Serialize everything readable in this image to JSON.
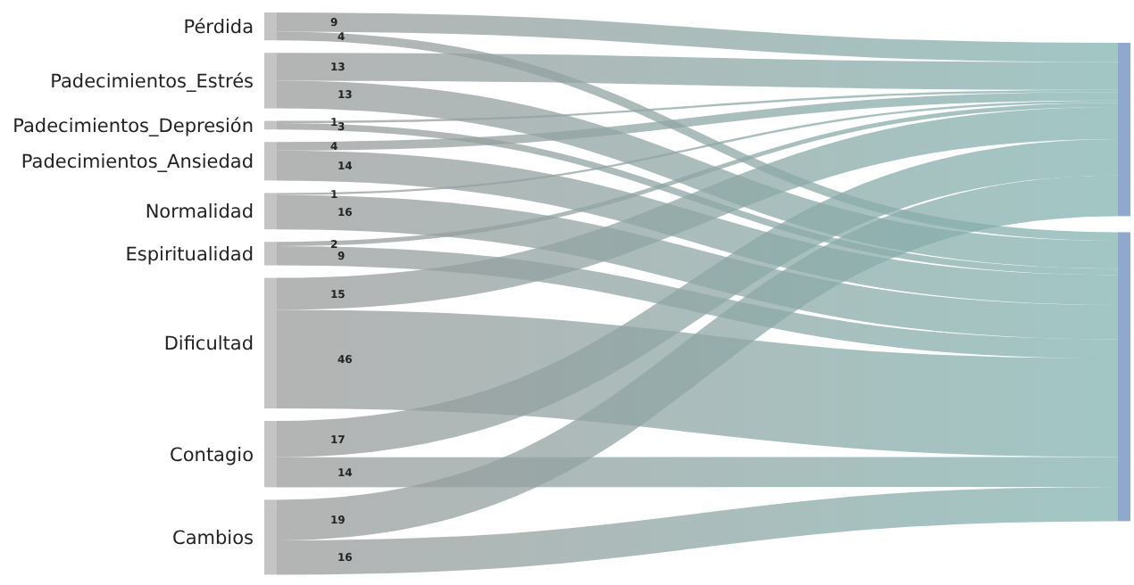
{
  "chart_data": {
    "type": "other",
    "categories": [
      "Pérdida",
      "Padecimientos_Estrés",
      "Padecimientos_Depresión",
      "Padecimientos_Ansiedad",
      "Normalidad",
      "Espiritualidad",
      "Dificultad",
      "Contagio",
      "Cambios"
    ],
    "series": [
      {
        "color": "#82b3b0",
        "values": [
          9,
          13,
          1,
          4,
          1,
          2,
          15,
          17,
          19
        ]
      },
      {
        "color": "#82b3b0",
        "values": [
          4,
          13,
          3,
          14,
          16,
          9,
          46,
          14,
          16
        ]
      }
    ],
    "data_labels": true
  }
}
